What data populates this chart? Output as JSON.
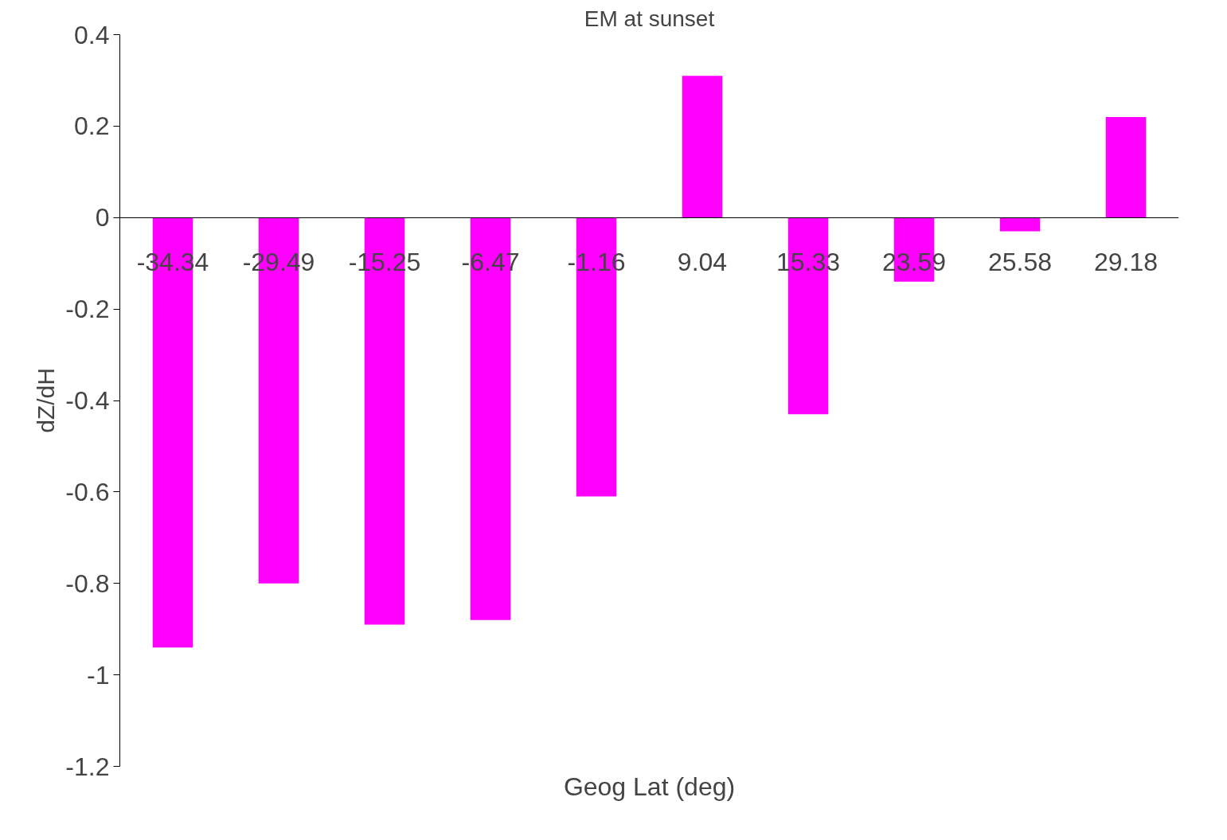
{
  "chart_data": {
    "type": "bar",
    "title": "EM at sunset",
    "xlabel": "Geog Lat (deg)",
    "ylabel": "dZ/dH",
    "categories": [
      "-34.34",
      "-29.49",
      "-15.25",
      "-6.47",
      "-1.16",
      "9.04",
      "15.33",
      "23.59",
      "25.58",
      "29.18"
    ],
    "values": [
      -0.94,
      -0.8,
      -0.89,
      -0.88,
      -0.61,
      0.31,
      -0.43,
      -0.14,
      -0.03,
      0.22
    ],
    "color": "#ff00ff",
    "ylim": [
      -1.2,
      0.4
    ],
    "yticks": [
      -1.2,
      -1,
      -0.8,
      -0.6,
      -0.4,
      -0.2,
      0,
      0.2,
      0.4
    ],
    "grid": false
  }
}
